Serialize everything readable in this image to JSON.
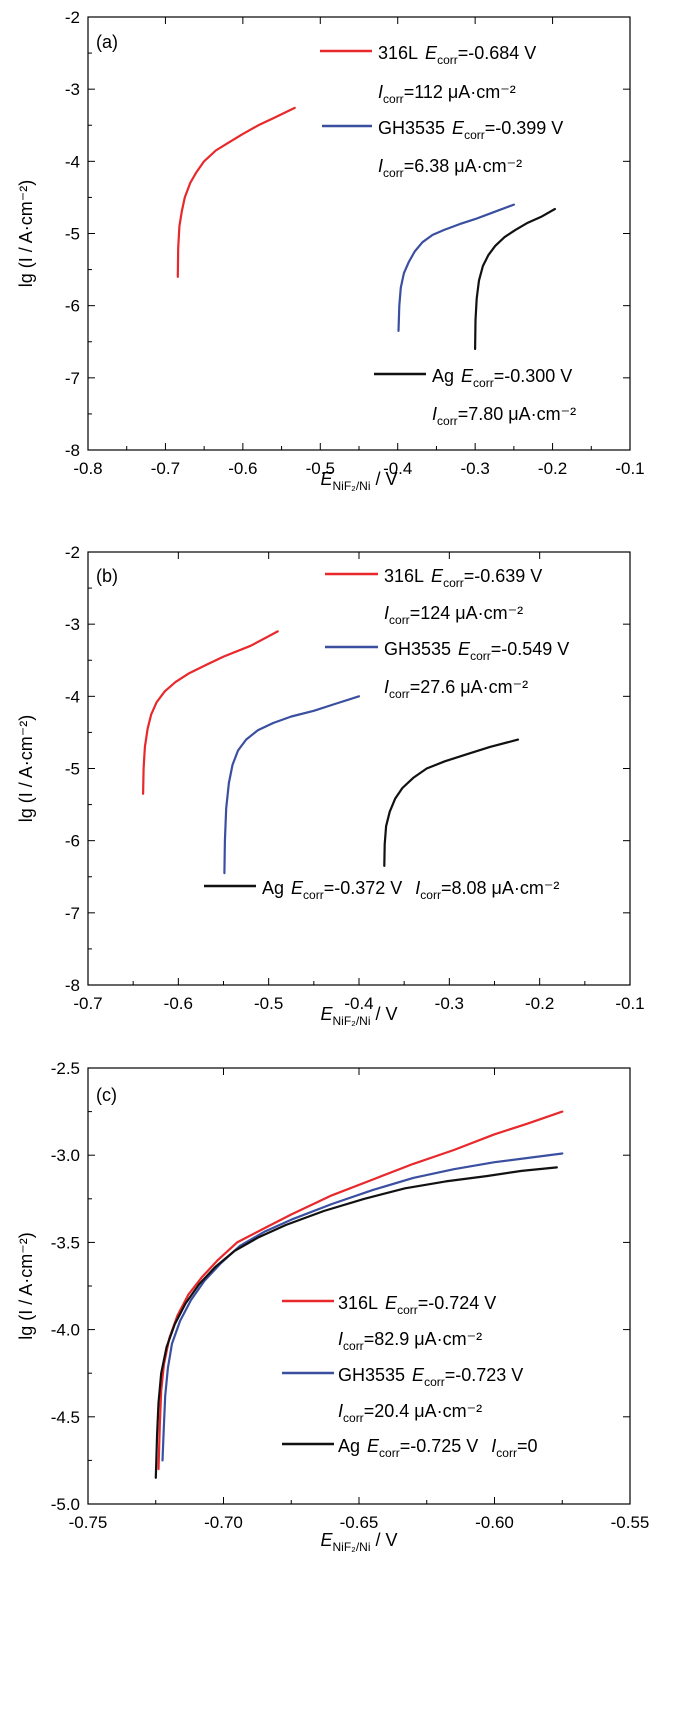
{
  "chart_data": [
    {
      "type": "line",
      "panel_label": "(a)",
      "xlabel": {
        "main": "E",
        "sub": "NiF₂/Ni",
        "unit": " / V"
      },
      "ylabel": "lg (I / A·cm⁻²)",
      "xlim": [
        -0.8,
        -0.1
      ],
      "ylim": [
        -8,
        -2
      ],
      "xticks": [
        -0.8,
        -0.7,
        -0.6,
        -0.5,
        -0.4,
        -0.3,
        -0.2,
        -0.1
      ],
      "yticks": [
        -8,
        -7,
        -6,
        -5,
        -4,
        -3,
        -2
      ],
      "xtick_labels": [
        "-0.8",
        "-0.7",
        "-0.6",
        "-0.5",
        "-0.4",
        "-0.3",
        "-0.2",
        "-0.1"
      ],
      "ytick_labels": [
        "-8",
        "-7",
        "-6",
        "-5",
        "-4",
        "-3",
        "-2"
      ],
      "series": [
        {
          "name": "316L",
          "color": "#e8282b",
          "ecorr": "=-0.684 V",
          "icorr": "=112 μA·cm⁻²",
          "x": [
            -0.684,
            -0.6835,
            -0.682,
            -0.679,
            -0.675,
            -0.668,
            -0.66,
            -0.65,
            -0.635,
            -0.62,
            -0.6,
            -0.58,
            -0.56,
            -0.533
          ],
          "y": [
            -5.6,
            -5.2,
            -4.9,
            -4.7,
            -4.5,
            -4.3,
            -4.15,
            -4.0,
            -3.85,
            -3.75,
            -3.62,
            -3.5,
            -3.4,
            -3.26
          ]
        },
        {
          "name": "GH3535",
          "color": "#3b4fa0",
          "ecorr": "=-0.399 V",
          "icorr": "=6.38 μA·cm⁻²",
          "x": [
            -0.399,
            -0.398,
            -0.396,
            -0.392,
            -0.386,
            -0.378,
            -0.368,
            -0.355,
            -0.34,
            -0.32,
            -0.3,
            -0.28,
            -0.25
          ],
          "y": [
            -6.35,
            -6.0,
            -5.75,
            -5.55,
            -5.4,
            -5.25,
            -5.12,
            -5.02,
            -4.95,
            -4.87,
            -4.8,
            -4.72,
            -4.6
          ]
        },
        {
          "name": "Ag",
          "color": "#111111",
          "ecorr": "=-0.300 V",
          "icorr": "=7.80 μA·cm⁻²",
          "x": [
            -0.3,
            -0.2995,
            -0.298,
            -0.295,
            -0.29,
            -0.283,
            -0.274,
            -0.262,
            -0.248,
            -0.232,
            -0.215,
            -0.197
          ],
          "y": [
            -6.6,
            -6.2,
            -5.9,
            -5.65,
            -5.45,
            -5.3,
            -5.17,
            -5.05,
            -4.95,
            -4.85,
            -4.77,
            -4.66
          ]
        }
      ],
      "legend_position": "top-right"
    },
    {
      "type": "line",
      "panel_label": "(b)",
      "xlabel": {
        "main": "E",
        "sub": "NiF₂/Ni",
        "unit": " / V"
      },
      "ylabel": "lg (I / A·cm⁻²)",
      "xlim": [
        -0.7,
        -0.1
      ],
      "ylim": [
        -8,
        -2
      ],
      "xticks": [
        -0.7,
        -0.6,
        -0.5,
        -0.4,
        -0.3,
        -0.2,
        -0.1
      ],
      "yticks": [
        -8,
        -7,
        -6,
        -5,
        -4,
        -3,
        -2
      ],
      "xtick_labels": [
        "-0.7",
        "-0.6",
        "-0.5",
        "-0.4",
        "-0.3",
        "-0.2",
        "-0.1"
      ],
      "ytick_labels": [
        "-8",
        "-7",
        "-6",
        "-5",
        "-4",
        "-3",
        "-2"
      ],
      "series": [
        {
          "name": "316L",
          "color": "#e8282b",
          "ecorr": "=-0.639 V",
          "icorr": "=124 μA·cm⁻²",
          "x": [
            -0.639,
            -0.6385,
            -0.637,
            -0.634,
            -0.63,
            -0.624,
            -0.615,
            -0.603,
            -0.588,
            -0.57,
            -0.55,
            -0.52,
            -0.49
          ],
          "y": [
            -5.35,
            -5.0,
            -4.7,
            -4.45,
            -4.25,
            -4.08,
            -3.93,
            -3.8,
            -3.68,
            -3.57,
            -3.45,
            -3.3,
            -3.1
          ]
        },
        {
          "name": "GH3535",
          "color": "#3b4fa0",
          "ecorr": "=-0.549 V",
          "icorr": "=27.6 μA·cm⁻²",
          "x": [
            -0.549,
            -0.5485,
            -0.547,
            -0.544,
            -0.54,
            -0.534,
            -0.525,
            -0.512,
            -0.495,
            -0.475,
            -0.45,
            -0.425,
            -0.4
          ],
          "y": [
            -6.45,
            -6.0,
            -5.55,
            -5.2,
            -4.95,
            -4.75,
            -4.6,
            -4.47,
            -4.37,
            -4.28,
            -4.2,
            -4.1,
            -4.0
          ]
        },
        {
          "name": "Ag",
          "color": "#111111",
          "ecorr": "=-0.372 V",
          "icorr": "=8.08 μA·cm⁻²",
          "x": [
            -0.372,
            -0.3715,
            -0.37,
            -0.366,
            -0.36,
            -0.352,
            -0.34,
            -0.325,
            -0.305,
            -0.28,
            -0.255,
            -0.224
          ],
          "y": [
            -6.35,
            -6.05,
            -5.8,
            -5.6,
            -5.42,
            -5.27,
            -5.13,
            -5.0,
            -4.9,
            -4.8,
            -4.7,
            -4.6
          ]
        }
      ],
      "legend_position": "top-right"
    },
    {
      "type": "line",
      "panel_label": "(c)",
      "xlabel": {
        "main": "E",
        "sub": "NiF₂/Ni",
        "unit": " / V"
      },
      "ylabel": "lg (I / A·cm⁻²)",
      "xlim": [
        -0.75,
        -0.55
      ],
      "ylim": [
        -5.0,
        -2.5
      ],
      "xticks": [
        -0.75,
        -0.7,
        -0.65,
        -0.6,
        -0.55
      ],
      "yticks": [
        -5.0,
        -4.5,
        -4.0,
        -3.5,
        -3.0,
        -2.5
      ],
      "xtick_labels": [
        "-0.75",
        "-0.70",
        "-0.65",
        "-0.60",
        "-0.55"
      ],
      "ytick_labels": [
        "-5.0",
        "-4.5",
        "-4.0",
        "-3.5",
        "-3.0",
        "-2.5"
      ],
      "series": [
        {
          "name": "316L",
          "color": "#e8282b",
          "ecorr": "=-0.724 V",
          "icorr": "=82.9 μA·cm⁻²",
          "x": [
            -0.724,
            -0.7235,
            -0.723,
            -0.722,
            -0.72,
            -0.717,
            -0.713,
            -0.708,
            -0.702,
            -0.695,
            -0.685,
            -0.675,
            -0.66,
            -0.645,
            -0.63,
            -0.615,
            -0.6,
            -0.588,
            -0.575
          ],
          "y": [
            -4.8,
            -4.55,
            -4.35,
            -4.2,
            -4.05,
            -3.92,
            -3.8,
            -3.7,
            -3.6,
            -3.5,
            -3.42,
            -3.34,
            -3.23,
            -3.14,
            -3.05,
            -2.97,
            -2.88,
            -2.82,
            -2.75
          ]
        },
        {
          "name": "GH3535",
          "color": "#3b4fa0",
          "ecorr": "=-0.723 V",
          "icorr": "=20.4 μA·cm⁻²",
          "x": [
            -0.7225,
            -0.722,
            -0.7215,
            -0.7205,
            -0.719,
            -0.716,
            -0.712,
            -0.707,
            -0.701,
            -0.694,
            -0.685,
            -0.675,
            -0.66,
            -0.645,
            -0.63,
            -0.615,
            -0.6,
            -0.575
          ],
          "y": [
            -4.75,
            -4.55,
            -4.38,
            -4.22,
            -4.08,
            -3.95,
            -3.83,
            -3.72,
            -3.62,
            -3.52,
            -3.44,
            -3.37,
            -3.28,
            -3.2,
            -3.13,
            -3.08,
            -3.04,
            -2.99
          ]
        },
        {
          "name": "Ag",
          "color": "#111111",
          "ecorr": "=-0.725 V",
          "icorr": "=0",
          "x": [
            -0.725,
            -0.7245,
            -0.724,
            -0.723,
            -0.721,
            -0.718,
            -0.714,
            -0.709,
            -0.703,
            -0.696,
            -0.687,
            -0.677,
            -0.663,
            -0.648,
            -0.633,
            -0.618,
            -0.603,
            -0.59,
            -0.577
          ],
          "y": [
            -4.85,
            -4.6,
            -4.42,
            -4.25,
            -4.1,
            -3.97,
            -3.85,
            -3.74,
            -3.64,
            -3.55,
            -3.47,
            -3.4,
            -3.32,
            -3.25,
            -3.19,
            -3.15,
            -3.12,
            -3.09,
            -3.07
          ]
        }
      ],
      "legend_position": "bottom-right"
    }
  ]
}
